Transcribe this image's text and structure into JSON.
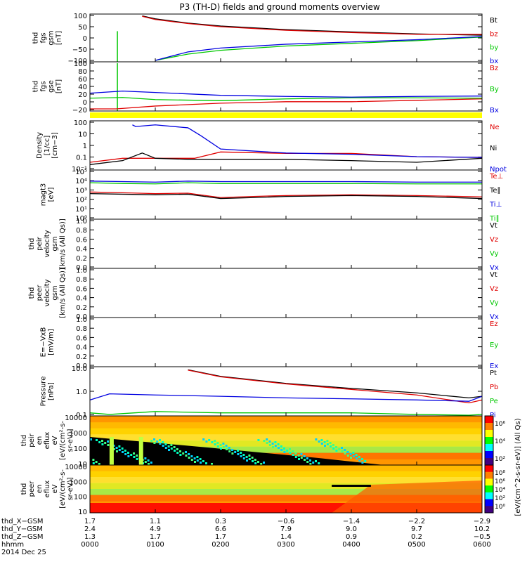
{
  "title": "P3 (TH-D) fields and ground moments overview",
  "colors": {
    "black": "#000000",
    "red": "#e00000",
    "green": "#00c800",
    "blue": "#0000e0",
    "yellow": "#ffff00",
    "spec_bg": "#000000"
  },
  "chart_data": [
    {
      "type": "line",
      "ylabel_lines": [
        "thd",
        "fgs",
        "gsm",
        "[nT]"
      ],
      "yticks": [
        "100",
        "50",
        "0",
        "−50",
        "−100"
      ],
      "ylim": [
        -100,
        100
      ],
      "log": false,
      "series": [
        {
          "name": "Bt",
          "color": "black",
          "x": [
            0.8,
            1.0,
            1.5,
            2.0,
            3.0,
            4.0,
            5.0,
            6.0
          ],
          "y": [
            98,
            85,
            66,
            53,
            37,
            27,
            18,
            12
          ]
        },
        {
          "name": "bz",
          "color": "red",
          "x": [
            0.8,
            1.0,
            1.5,
            2.0,
            3.0,
            4.0,
            5.0,
            6.0
          ],
          "y": [
            96,
            82,
            64,
            50,
            34,
            24,
            16,
            16
          ]
        },
        {
          "name": "by",
          "color": "green",
          "x": [
            1.0,
            1.5,
            2.0,
            3.0,
            4.0,
            5.0,
            6.0
          ],
          "y": [
            -100,
            -72,
            -55,
            -36,
            -24,
            -12,
            4
          ]
        },
        {
          "name": "bx",
          "color": "blue",
          "x": [
            1.0,
            1.5,
            2.0,
            3.0,
            4.0,
            5.0,
            6.0
          ],
          "y": [
            -100,
            -62,
            -45,
            -28,
            -18,
            -8,
            6
          ]
        }
      ],
      "spikes": [
        {
          "x": 0.42,
          "y": 30,
          "color": "green"
        }
      ]
    },
    {
      "type": "line",
      "ylabel_lines": [
        "thd",
        "fgs",
        "gse",
        "[nT]"
      ],
      "yticks": [
        "100",
        "80",
        "60",
        "40",
        "20",
        "0",
        "−20"
      ],
      "ylim": [
        -30,
        100
      ],
      "log": false,
      "series": [
        {
          "name": "Bz",
          "color": "red",
          "x": [
            0,
            0.4,
            1.0,
            2.0,
            3.0,
            4.0,
            5.0,
            6.0
          ],
          "y": [
            -28,
            -28,
            -20,
            -12,
            -8,
            -8,
            -4,
            0
          ]
        },
        {
          "name": "By",
          "color": "green",
          "x": [
            0,
            0.5,
            1.0,
            2.0,
            3.0,
            4.0,
            5.0,
            6.0
          ],
          "y": [
            2,
            4,
            -2,
            -5,
            0,
            3,
            3,
            2
          ]
        },
        {
          "name": "Bx",
          "color": "blue",
          "x": [
            0,
            0.5,
            1.0,
            2.0,
            3.0,
            4.0,
            5.0,
            6.0
          ],
          "y": [
            16,
            22,
            18,
            10,
            7,
            5,
            7,
            8
          ]
        }
      ],
      "spikes": [
        {
          "x": 0.42,
          "y": 100,
          "color": "green"
        }
      ]
    },
    {
      "type": "line",
      "ylabel_lines": [
        "Density",
        "[1/cc]",
        "[cm−3]"
      ],
      "yticks": [
        "100",
        "10",
        "1",
        "0.1",
        "10⁻¹"
      ],
      "ylim": [
        -1,
        2.5
      ],
      "log": true,
      "series": [
        {
          "name": "Ne",
          "color": "red",
          "x": [
            0,
            0.5,
            1.0,
            1.6,
            2.0,
            3.0,
            4.0,
            5.0,
            6.0
          ],
          "y": [
            0.3,
            0.6,
            0.6,
            0.6,
            1.8,
            1.4,
            1.4,
            0.8,
            0.7
          ]
        },
        {
          "name": "Ni",
          "color": "black",
          "x": [
            0,
            0.5,
            0.8,
            1.0,
            1.5,
            2.0,
            3.0,
            4.0,
            5.0,
            6.0
          ],
          "y": [
            0.2,
            0.4,
            1.5,
            0.6,
            0.5,
            0.5,
            0.5,
            0.4,
            0.3,
            0.6
          ]
        },
        {
          "name": "Npot",
          "color": "blue",
          "x": [
            0.65,
            0.7,
            1.0,
            1.5,
            1.7,
            2.0,
            3.0,
            4.0,
            5.0,
            6.0
          ],
          "y": [
            200,
            150,
            200,
            120,
            30,
            3,
            1.5,
            1.2,
            0.8,
            0.7
          ]
        }
      ],
      "legend_extra": [
        "Ne",
        "Ni",
        "Npot"
      ]
    },
    {
      "type": "line",
      "ylabel_lines": [
        "magt3",
        "[eV]"
      ],
      "yticks": [
        "10⁵",
        "10⁴",
        "10³",
        "10²",
        "10¹",
        "10⁰"
      ],
      "ylim": [
        0,
        5
      ],
      "log": true,
      "series": [
        {
          "name": "Te⊥",
          "color": "red",
          "x": [
            0,
            0.5,
            1.0,
            1.5,
            2.0,
            2.5,
            3.0,
            4.0,
            5.0,
            6.0
          ],
          "y": [
            600,
            500,
            400,
            450,
            150,
            200,
            250,
            300,
            250,
            180
          ]
        },
        {
          "name": "Te∥",
          "color": "black",
          "x": [
            0,
            0.5,
            1.0,
            1.5,
            2.0,
            2.5,
            3.0,
            4.0,
            5.0,
            6.0
          ],
          "y": [
            400,
            350,
            300,
            350,
            120,
            150,
            200,
            250,
            200,
            120
          ]
        },
        {
          "name": "Ti⊥",
          "color": "blue",
          "x": [
            0,
            0.5,
            1.0,
            1.5,
            2.0,
            3.0,
            4.0,
            5.0,
            6.0
          ],
          "y": [
            9000,
            8000,
            7000,
            9000,
            8000,
            8000,
            8000,
            7000,
            7000
          ]
        },
        {
          "name": "Ti∥",
          "color": "green",
          "x": [
            0,
            0.5,
            1.0,
            1.5,
            2.0,
            3.0,
            4.0,
            5.0,
            6.0
          ],
          "y": [
            6000,
            5000,
            4500,
            6000,
            5000,
            5000,
            5000,
            4500,
            4500
          ]
        }
      ]
    },
    {
      "type": "line",
      "ylabel_lines": [
        "thd",
        "peir",
        "velocity",
        "gsm",
        "[km/s (All Qs)]"
      ],
      "yticks": [
        "1.0",
        "0.8",
        "0.6",
        "0.4",
        "0.2",
        "0.0"
      ],
      "ylim": [
        0,
        1
      ],
      "log": false,
      "series": [
        {
          "name": "Vt",
          "color": "black",
          "x": [],
          "y": []
        },
        {
          "name": "Vz",
          "color": "red",
          "x": [],
          "y": []
        },
        {
          "name": "Vy",
          "color": "green",
          "x": [],
          "y": []
        },
        {
          "name": "Vx",
          "color": "blue",
          "x": [],
          "y": []
        }
      ]
    },
    {
      "type": "line",
      "ylabel_lines": [
        "thd",
        "peer",
        "velocity",
        "gsm",
        "[km/s (All Qs)]"
      ],
      "yticks": [
        "1.0",
        "0.8",
        "0.6",
        "0.4",
        "0.2",
        "0.0"
      ],
      "ylim": [
        0,
        1
      ],
      "log": false,
      "series": [
        {
          "name": "Vt",
          "color": "black",
          "x": [],
          "y": []
        },
        {
          "name": "Vz",
          "color": "red",
          "x": [],
          "y": []
        },
        {
          "name": "Vy",
          "color": "green",
          "x": [],
          "y": []
        },
        {
          "name": "Vx",
          "color": "blue",
          "x": [],
          "y": []
        }
      ]
    },
    {
      "type": "line",
      "ylabel_lines": [
        "E=−VxB",
        "[mV/m]"
      ],
      "yticks": [
        "1.0",
        "0.8",
        "0.6",
        "0.4",
        "0.2",
        "0.0"
      ],
      "ylim": [
        0,
        1
      ],
      "log": false,
      "series": [
        {
          "name": "Ez",
          "color": "red",
          "x": [],
          "y": []
        },
        {
          "name": "Ey",
          "color": "green",
          "x": [],
          "y": []
        },
        {
          "name": "Ex",
          "color": "blue",
          "x": [],
          "y": []
        }
      ]
    },
    {
      "type": "line",
      "ylabel_lines": [
        "Pressure",
        "[nPa]"
      ],
      "yticks": [
        "10.0",
        "1.0",
        "0.1"
      ],
      "ylim": [
        -1.4,
        1.4
      ],
      "log": true,
      "series": [
        {
          "name": "Pt",
          "color": "black",
          "x": [
            1.5,
            2.0,
            3.0,
            4.0,
            5.0,
            5.8,
            6.0
          ],
          "y": [
            20,
            8,
            3,
            1.5,
            0.8,
            0.4,
            0.5
          ]
        },
        {
          "name": "Pb",
          "color": "red",
          "x": [
            1.5,
            2.0,
            3.0,
            4.0,
            5.0,
            5.8,
            6.0
          ],
          "y": [
            19,
            7.5,
            2.8,
            1.3,
            0.6,
            0.2,
            0.3
          ]
        },
        {
          "name": "Pe",
          "color": "green",
          "x": [
            0,
            0.3,
            1.0,
            2.0,
            3.0,
            4.0,
            5.0,
            5.8,
            6.0
          ],
          "y": [
            0.05,
            0.04,
            0.06,
            0.05,
            0.05,
            0.05,
            0.04,
            0.03,
            0.04
          ]
        },
        {
          "name": "Pi",
          "color": "blue",
          "x": [
            0,
            0.3,
            1.0,
            2.0,
            3.0,
            4.0,
            5.0,
            5.8,
            6.0
          ],
          "y": [
            0.3,
            0.7,
            0.6,
            0.5,
            0.4,
            0.35,
            0.3,
            0.25,
            0.5
          ]
        }
      ]
    },
    {
      "type": "heatmap",
      "ylabel_lines": [
        "thd",
        "peir",
        "en",
        "eflux",
        "eV",
        "[eV/(cm²-s-",
        "sr-eV)]"
      ],
      "yticks": [
        "10000",
        "1000",
        "100",
        "10"
      ],
      "colorbar_ticks": [
        "10⁶",
        "10⁴",
        "10²"
      ]
    },
    {
      "type": "heatmap",
      "ylabel_lines": [
        "thd",
        "peer",
        "en",
        "eflux",
        "eV",
        "[eV/(cm²-s-",
        "sr-eV)]"
      ],
      "yticks": [
        "10000",
        "1000",
        "100",
        "10"
      ],
      "colorbar_ticks": [
        "10⁸",
        "10⁶",
        "10⁴",
        "10²",
        "10⁰"
      ]
    }
  ],
  "colorbar_label": "[eV/(cm^2-s-sr-eV)] (All Qs)",
  "xaxis": {
    "rows": [
      {
        "label": "thd_X−GSM",
        "values": [
          "1.7",
          "1.1",
          "0.3",
          "−0.6",
          "−1.4",
          "−2.2",
          "−2.9"
        ]
      },
      {
        "label": "thd_Y−GSM",
        "values": [
          "2.4",
          "4.9",
          "6.6",
          "7.9",
          "9.0",
          "9.7",
          "10.2"
        ]
      },
      {
        "label": "thd_Z−GSM",
        "values": [
          "1.3",
          "1.7",
          "1.7",
          "1.4",
          "0.9",
          "0.2",
          "−0.5"
        ]
      },
      {
        "label": "hhmm",
        "values": [
          "0000",
          "0100",
          "0200",
          "0300",
          "0400",
          "0500",
          "0600"
        ]
      }
    ],
    "date": "2014 Dec 25"
  }
}
